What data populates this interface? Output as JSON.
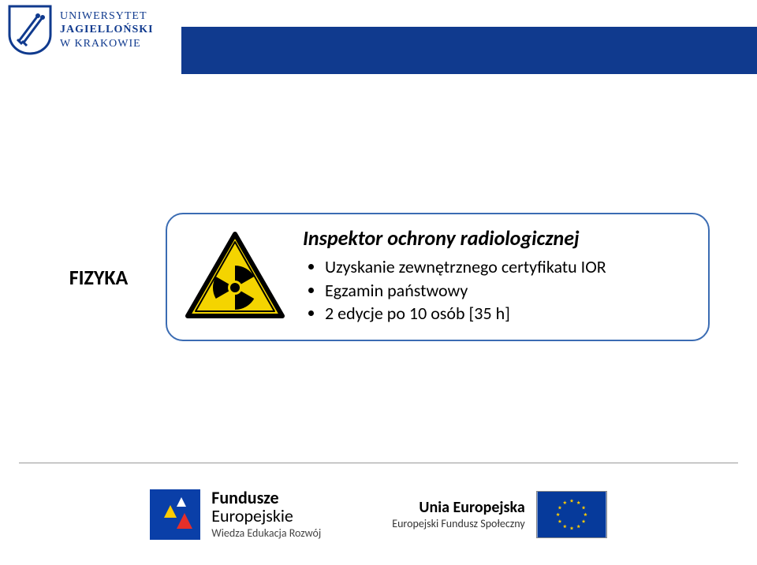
{
  "colors": {
    "brand_blue": "#103a8e",
    "box_border": "#3b6cb3",
    "hazard_yellow": "#f4d400",
    "hazard_border": "#000000",
    "eu_flag_bg": "#063a9b",
    "eu_star": "#ffcc00",
    "fe_blue": "#0a3fa8",
    "fe_orange": "#f39200",
    "fe_red": "#e52f2a",
    "fe_white": "#ffffff",
    "footer_rule": "#999999"
  },
  "header": {
    "university_line1": "UNIWERSYTET",
    "university_line2": "JAGIELLOŃSKI",
    "university_line3": "W KRAKOWIE"
  },
  "section": {
    "label": "FIZYKA",
    "card": {
      "title": "Inspektor ochrony radiologicznej",
      "bullets": [
        "Uzyskanie zewnętrznego certyfikatu IOR",
        "Egzamin państwowy",
        "2 edycje po 10 osób [35 h]"
      ]
    }
  },
  "footer": {
    "fe": {
      "line1": "Fundusze",
      "line2": "Europejskie",
      "line3": "Wiedza Edukacja Rozwój"
    },
    "ue": {
      "line1": "Unia Europejska",
      "line2": "Europejski Fundusz Społeczny"
    }
  }
}
